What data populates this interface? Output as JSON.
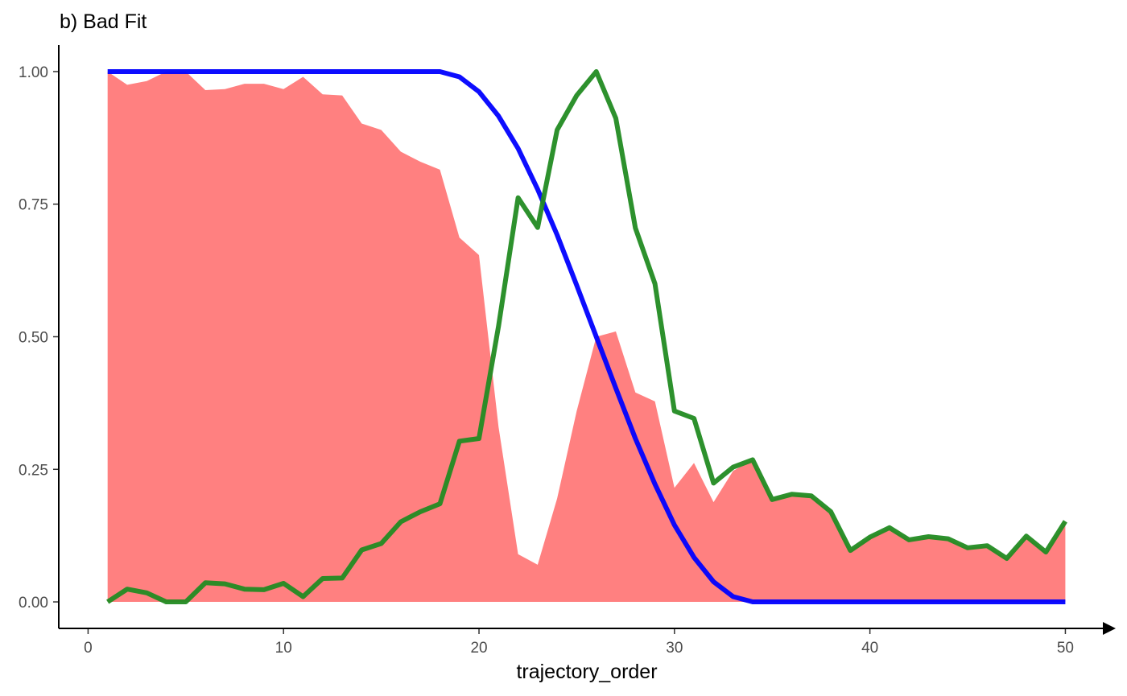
{
  "chart_data": {
    "type": "line",
    "title": "b) Bad Fit",
    "xlabel": "trajectory_order",
    "ylabel": "",
    "xlim": [
      -1.5,
      52
    ],
    "ylim": [
      -0.05,
      1.05
    ],
    "xticks": [
      0,
      10,
      20,
      30,
      40,
      50
    ],
    "yticks": [
      0.0,
      0.25,
      0.5,
      0.75,
      1.0
    ],
    "xtick_labels": [
      "0",
      "10",
      "20",
      "30",
      "40",
      "50"
    ],
    "ytick_labels": [
      "0.00",
      "0.25",
      "0.50",
      "0.75",
      "1.00"
    ],
    "grid": false,
    "legend": "none",
    "x": [
      1,
      2,
      3,
      4,
      5,
      6,
      7,
      8,
      9,
      10,
      11,
      12,
      13,
      14,
      15,
      16,
      17,
      18,
      19,
      20,
      21,
      22,
      23,
      24,
      25,
      26,
      27,
      28,
      29,
      30,
      31,
      32,
      33,
      34,
      35,
      36,
      37,
      38,
      39,
      40,
      41,
      42,
      43,
      44,
      45,
      46,
      47,
      48,
      49,
      50
    ],
    "series": [
      {
        "kind": "area",
        "color": "#ff8080",
        "values": [
          1.0,
          0.975,
          0.982,
          1.0,
          1.0,
          0.965,
          0.967,
          0.977,
          0.977,
          0.967,
          0.99,
          0.957,
          0.955,
          0.902,
          0.89,
          0.849,
          0.83,
          0.815,
          0.687,
          0.654,
          0.33,
          0.09,
          0.07,
          0.195,
          0.36,
          0.5,
          0.51,
          0.395,
          0.378,
          0.215,
          0.262,
          0.188,
          0.247,
          0.268,
          0.193,
          0.203,
          0.2,
          0.17,
          0.097,
          0.122,
          0.14,
          0.117,
          0.123,
          0.119,
          0.102,
          0.106,
          0.082,
          0.124,
          0.094,
          0.152
        ]
      },
      {
        "kind": "line",
        "color": "#0000ff",
        "values": [
          1,
          1,
          1,
          1,
          1,
          1,
          1,
          1,
          1,
          1,
          1,
          1,
          1,
          1,
          1,
          1,
          1,
          1,
          0.99,
          0.962,
          0.916,
          0.855,
          0.778,
          0.692,
          0.597,
          0.5,
          0.403,
          0.308,
          0.222,
          0.145,
          0.084,
          0.038,
          0.01,
          0,
          0,
          0,
          0,
          0,
          0,
          0,
          0,
          0,
          0,
          0,
          0,
          0,
          0,
          0,
          0,
          0
        ]
      },
      {
        "kind": "line",
        "color": "#228b22",
        "values": [
          0,
          0.024,
          0.017,
          0,
          0,
          0.036,
          0.034,
          0.024,
          0.023,
          0.035,
          0.01,
          0.044,
          0.045,
          0.098,
          0.11,
          0.151,
          0.17,
          0.185,
          0.303,
          0.308,
          0.52,
          0.762,
          0.706,
          0.89,
          0.955,
          1.0,
          0.912,
          0.705,
          0.6,
          0.36,
          0.346,
          0.224,
          0.254,
          0.268,
          0.193,
          0.203,
          0.2,
          0.17,
          0.097,
          0.122,
          0.14,
          0.117,
          0.123,
          0.119,
          0.102,
          0.106,
          0.082,
          0.124,
          0.094,
          0.152
        ]
      }
    ]
  }
}
